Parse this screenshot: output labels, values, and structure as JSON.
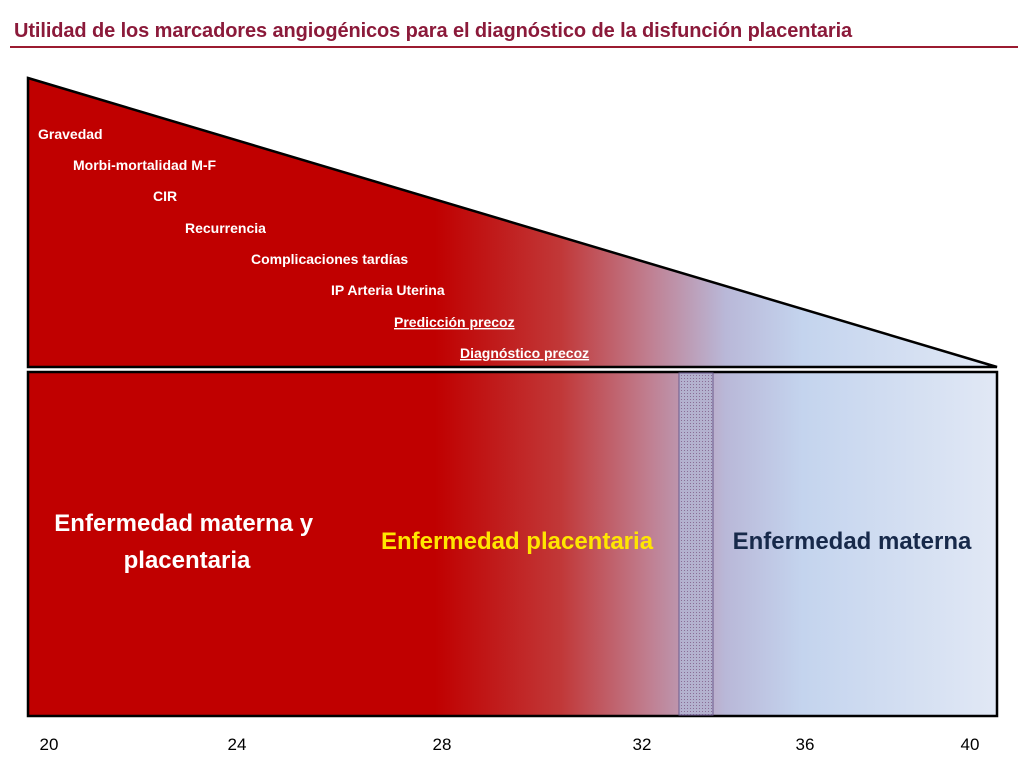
{
  "title": "Utilidad de los marcadores angiogénicos para el diagnóstico de la disfunción placentaria",
  "colors": {
    "title": "#8b1a3a",
    "dark_red": "#c00000",
    "light_blue": "#c5d5ee",
    "label_yellow": "#ffe600",
    "label_navy": "#17294a"
  },
  "triangle_labels": [
    {
      "text": "Gravedad",
      "underlined": false
    },
    {
      "text": "Morbi-mortalidad M-F",
      "underlined": false
    },
    {
      "text": "CIR",
      "underlined": false
    },
    {
      "text": "Recurrencia",
      "underlined": false
    },
    {
      "text": "Complicaciones tardías",
      "underlined": false
    },
    {
      "text": "IP Arteria Uterina",
      "underlined": false
    },
    {
      "text": "Predicción precoz",
      "underlined": true
    },
    {
      "text": "Diagnóstico precoz",
      "underlined": true
    }
  ],
  "box_labels": {
    "maternal_placental": [
      "Enfermedad materna y",
      "placentaria"
    ],
    "placental": "Enfermedad placentaria",
    "maternal": "Enfermedad materna"
  },
  "week_axis": [
    "20",
    "24",
    "28",
    "32",
    "36",
    "40"
  ]
}
